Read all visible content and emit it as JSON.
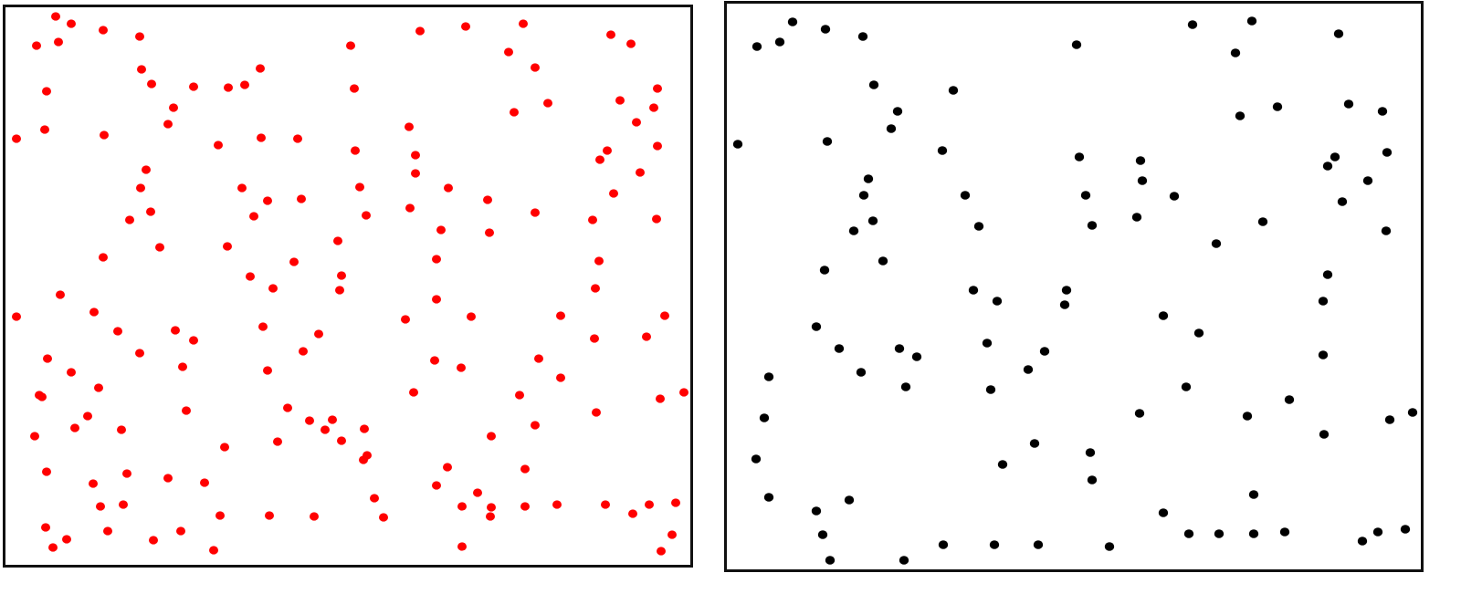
{
  "chart_data": [
    {
      "type": "scatter",
      "title": "",
      "xlabel": "",
      "ylabel": "",
      "axes_visible": false,
      "grid": false,
      "y_direction": "down",
      "xlim": [
        4,
        757
      ],
      "ylim": [
        6,
        620
      ],
      "marker_color": "#ff0000",
      "points": [
        [
          61,
          18
        ],
        [
          78,
          26
        ],
        [
          40,
          50
        ],
        [
          64,
          46
        ],
        [
          113,
          33
        ],
        [
          153,
          40
        ],
        [
          384,
          50
        ],
        [
          460,
          34
        ],
        [
          510,
          29
        ],
        [
          573,
          26
        ],
        [
          557,
          57
        ],
        [
          669,
          38
        ],
        [
          691,
          48
        ],
        [
          155,
          76
        ],
        [
          166,
          92
        ],
        [
          51,
          100
        ],
        [
          212,
          95
        ],
        [
          250,
          96
        ],
        [
          268,
          93
        ],
        [
          285,
          75
        ],
        [
          388,
          97
        ],
        [
          586,
          74
        ],
        [
          679,
          110
        ],
        [
          720,
          97
        ],
        [
          716,
          118
        ],
        [
          600,
          113
        ],
        [
          563,
          123
        ],
        [
          190,
          118
        ],
        [
          184,
          136
        ],
        [
          697,
          134
        ],
        [
          18,
          152
        ],
        [
          49,
          142
        ],
        [
          114,
          148
        ],
        [
          239,
          159
        ],
        [
          286,
          151
        ],
        [
          326,
          152
        ],
        [
          448,
          139
        ],
        [
          455,
          170
        ],
        [
          389,
          165
        ],
        [
          665,
          165
        ],
        [
          657,
          175
        ],
        [
          720,
          160
        ],
        [
          160,
          186
        ],
        [
          455,
          190
        ],
        [
          701,
          189
        ],
        [
          154,
          206
        ],
        [
          265,
          206
        ],
        [
          293,
          220
        ],
        [
          330,
          218
        ],
        [
          394,
          205
        ],
        [
          491,
          206
        ],
        [
          534,
          219
        ],
        [
          672,
          212
        ],
        [
          165,
          232
        ],
        [
          142,
          241
        ],
        [
          278,
          237
        ],
        [
          401,
          236
        ],
        [
          449,
          228
        ],
        [
          586,
          233
        ],
        [
          649,
          241
        ],
        [
          719,
          240
        ],
        [
          483,
          252
        ],
        [
          536,
          255
        ],
        [
          175,
          271
        ],
        [
          249,
          270
        ],
        [
          370,
          264
        ],
        [
          113,
          282
        ],
        [
          322,
          287
        ],
        [
          478,
          284
        ],
        [
          656,
          286
        ],
        [
          274,
          303
        ],
        [
          299,
          316
        ],
        [
          374,
          302
        ],
        [
          372,
          318
        ],
        [
          652,
          316
        ],
        [
          66,
          323
        ],
        [
          478,
          328
        ],
        [
          18,
          347
        ],
        [
          103,
          342
        ],
        [
          288,
          358
        ],
        [
          444,
          350
        ],
        [
          516,
          347
        ],
        [
          614,
          346
        ],
        [
          728,
          346
        ],
        [
          129,
          363
        ],
        [
          192,
          362
        ],
        [
          212,
          373
        ],
        [
          349,
          366
        ],
        [
          651,
          371
        ],
        [
          708,
          369
        ],
        [
          52,
          393
        ],
        [
          153,
          387
        ],
        [
          332,
          385
        ],
        [
          476,
          395
        ],
        [
          590,
          393
        ],
        [
          200,
          402
        ],
        [
          293,
          406
        ],
        [
          505,
          403
        ],
        [
          78,
          408
        ],
        [
          614,
          414
        ],
        [
          43,
          433
        ],
        [
          46,
          435
        ],
        [
          108,
          425
        ],
        [
          453,
          430
        ],
        [
          569,
          433
        ],
        [
          723,
          437
        ],
        [
          749,
          430
        ],
        [
          96,
          456
        ],
        [
          204,
          450
        ],
        [
          315,
          447
        ],
        [
          653,
          452
        ],
        [
          82,
          469
        ],
        [
          133,
          471
        ],
        [
          339,
          461
        ],
        [
          364,
          460
        ],
        [
          356,
          471
        ],
        [
          399,
          470
        ],
        [
          586,
          466
        ],
        [
          38,
          478
        ],
        [
          246,
          490
        ],
        [
          304,
          484
        ],
        [
          374,
          483
        ],
        [
          538,
          478
        ],
        [
          402,
          499
        ],
        [
          398,
          504
        ],
        [
          51,
          517
        ],
        [
          139,
          519
        ],
        [
          184,
          524
        ],
        [
          224,
          529
        ],
        [
          490,
          512
        ],
        [
          575,
          514
        ],
        [
          102,
          530
        ],
        [
          478,
          532
        ],
        [
          523,
          540
        ],
        [
          410,
          546
        ],
        [
          110,
          555
        ],
        [
          135,
          553
        ],
        [
          241,
          565
        ],
        [
          295,
          565
        ],
        [
          344,
          566
        ],
        [
          420,
          567
        ],
        [
          506,
          555
        ],
        [
          538,
          556
        ],
        [
          537,
          566
        ],
        [
          575,
          555
        ],
        [
          610,
          553
        ],
        [
          663,
          553
        ],
        [
          693,
          563
        ],
        [
          711,
          553
        ],
        [
          740,
          551
        ],
        [
          50,
          578
        ],
        [
          118,
          582
        ],
        [
          73,
          591
        ],
        [
          58,
          600
        ],
        [
          168,
          592
        ],
        [
          198,
          582
        ],
        [
          234,
          603
        ],
        [
          506,
          599
        ],
        [
          736,
          586
        ],
        [
          724,
          604
        ]
      ]
    },
    {
      "type": "scatter",
      "title": "",
      "xlabel": "",
      "ylabel": "",
      "axes_visible": false,
      "grid": false,
      "y_direction": "down",
      "xlim": [
        795,
        1557
      ],
      "ylim": [
        2,
        624
      ],
      "marker_color": "#000000",
      "points": [
        [
          868,
          24
        ],
        [
          904,
          32
        ],
        [
          829,
          51
        ],
        [
          854,
          46
        ],
        [
          945,
          40
        ],
        [
          1179,
          49
        ],
        [
          1306,
          27
        ],
        [
          1371,
          23
        ],
        [
          1353,
          58
        ],
        [
          1466,
          37
        ],
        [
          957,
          93
        ],
        [
          1044,
          99
        ],
        [
          983,
          122
        ],
        [
          976,
          141
        ],
        [
          1358,
          127
        ],
        [
          1399,
          117
        ],
        [
          1477,
          114
        ],
        [
          1514,
          122
        ],
        [
          808,
          158
        ],
        [
          906,
          155
        ],
        [
          1032,
          165
        ],
        [
          1182,
          172
        ],
        [
          1249,
          176
        ],
        [
          1462,
          172
        ],
        [
          1454,
          182
        ],
        [
          1519,
          167
        ],
        [
          951,
          196
        ],
        [
          946,
          214
        ],
        [
          1057,
          214
        ],
        [
          1189,
          214
        ],
        [
          1251,
          198
        ],
        [
          1286,
          215
        ],
        [
          1498,
          198
        ],
        [
          1470,
          221
        ],
        [
          956,
          242
        ],
        [
          935,
          253
        ],
        [
          1072,
          248
        ],
        [
          1196,
          247
        ],
        [
          1245,
          238
        ],
        [
          1383,
          243
        ],
        [
          1518,
          253
        ],
        [
          1332,
          267
        ],
        [
          967,
          286
        ],
        [
          903,
          296
        ],
        [
          1454,
          301
        ],
        [
          1066,
          318
        ],
        [
          1092,
          330
        ],
        [
          1168,
          318
        ],
        [
          1166,
          334
        ],
        [
          1449,
          330
        ],
        [
          1274,
          346
        ],
        [
          894,
          358
        ],
        [
          1313,
          365
        ],
        [
          1081,
          376
        ],
        [
          919,
          382
        ],
        [
          985,
          382
        ],
        [
          1004,
          391
        ],
        [
          1144,
          385
        ],
        [
          1449,
          389
        ],
        [
          842,
          413
        ],
        [
          943,
          408
        ],
        [
          1126,
          405
        ],
        [
          992,
          424
        ],
        [
          1085,
          427
        ],
        [
          1299,
          424
        ],
        [
          1412,
          438
        ],
        [
          837,
          458
        ],
        [
          1248,
          453
        ],
        [
          1366,
          456
        ],
        [
          1450,
          476
        ],
        [
          1522,
          460
        ],
        [
          1547,
          452
        ],
        [
          1133,
          486
        ],
        [
          828,
          503
        ],
        [
          1098,
          509
        ],
        [
          1194,
          496
        ],
        [
          1196,
          526
        ],
        [
          842,
          545
        ],
        [
          930,
          548
        ],
        [
          1373,
          542
        ],
        [
          894,
          560
        ],
        [
          1274,
          562
        ],
        [
          901,
          586
        ],
        [
          1302,
          585
        ],
        [
          1335,
          585
        ],
        [
          1373,
          585
        ],
        [
          1407,
          583
        ],
        [
          1509,
          583
        ],
        [
          1539,
          580
        ],
        [
          1492,
          593
        ],
        [
          909,
          614
        ],
        [
          990,
          614
        ],
        [
          1033,
          597
        ],
        [
          1089,
          597
        ],
        [
          1137,
          597
        ],
        [
          1215,
          599
        ]
      ]
    }
  ]
}
